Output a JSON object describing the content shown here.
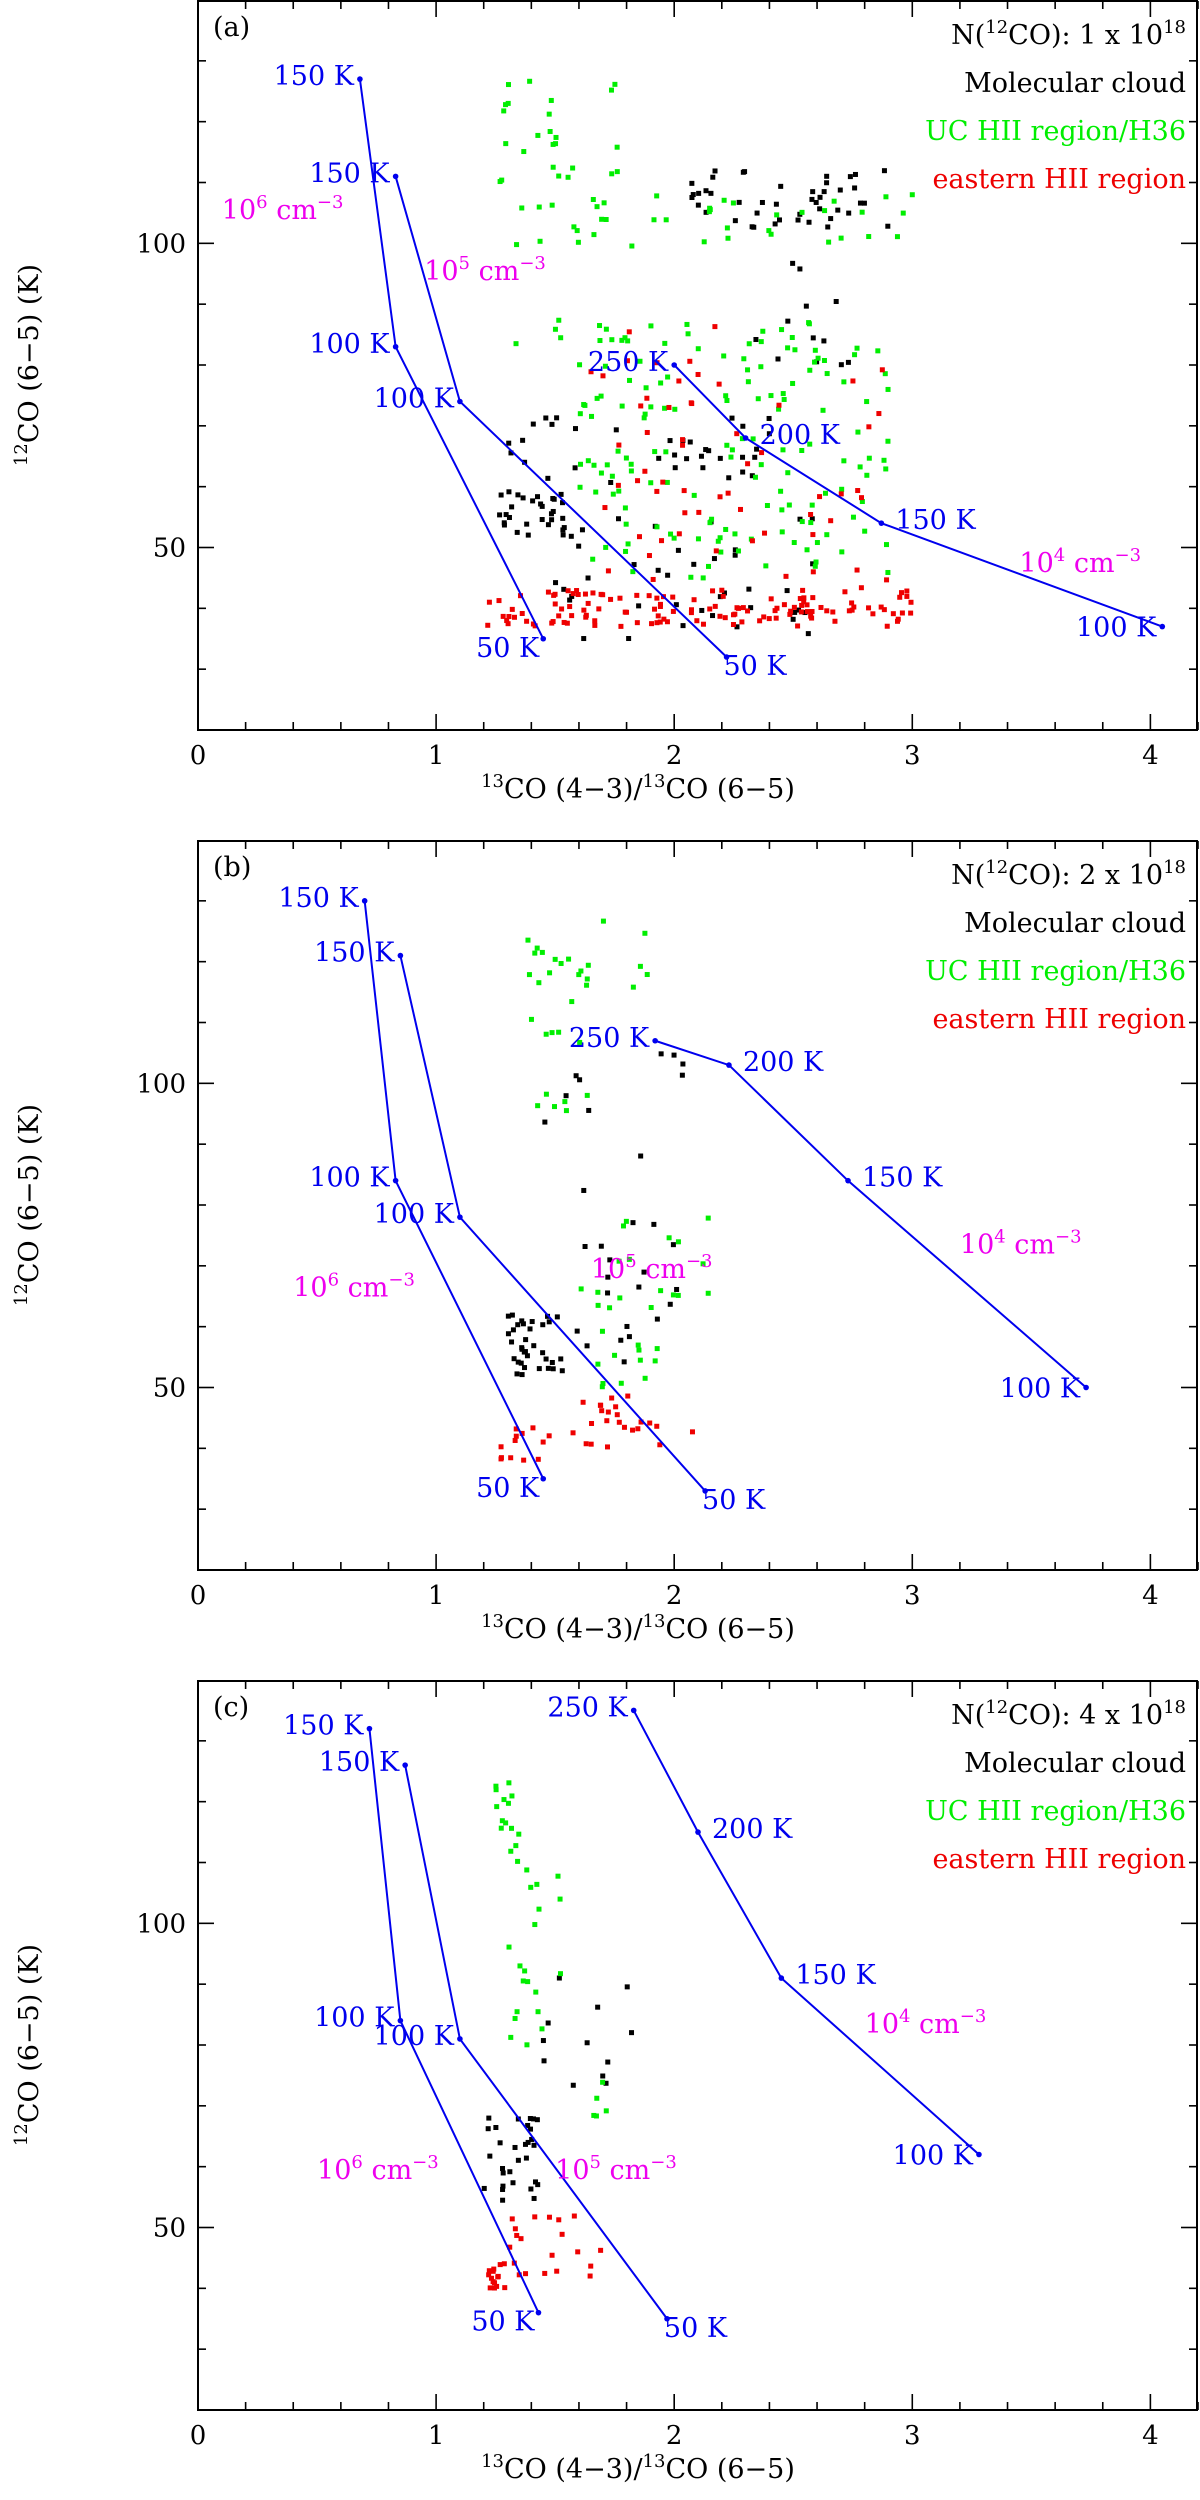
{
  "chart_data": [
    {
      "type": "scatter",
      "panel_label": "(a)",
      "column_density": {
        "prefix": "N(",
        "iso": "12",
        "mol": "CO): 1 x 10",
        "exp": "18"
      },
      "xlabel": {
        "iso1": "13",
        "mid": "CO (4−3)/",
        "iso2": "13",
        "end": "CO (6−5)"
      },
      "ylabel": {
        "iso": "12",
        "rest": "CO (6−5) (K)"
      },
      "xlim": [
        0,
        4.2
      ],
      "ylim": [
        20,
        140
      ],
      "xticks": [
        0,
        1,
        2,
        3,
        4
      ],
      "yticks": [
        50,
        100
      ],
      "legend": [
        {
          "label": "Molecular cloud",
          "color": "#000000"
        },
        {
          "label": "UC HII region/H36",
          "color": "#00ee00"
        },
        {
          "label": "eastern HII region",
          "color": "#ee0000"
        }
      ],
      "models": [
        {
          "density": "10^6 cm^-3",
          "x": [
            0.68,
            0.83,
            1.45
          ],
          "y": [
            127,
            83,
            35
          ],
          "t_labels": [
            "150 K",
            "100 K",
            "50 K"
          ]
        },
        {
          "density": "10^5 cm^-3",
          "x": [
            0.83,
            1.1,
            2.22
          ],
          "y": [
            111,
            74,
            32
          ],
          "t_labels": [
            "150 K",
            "100 K",
            "50 K"
          ]
        },
        {
          "density": "10^4 cm^-3",
          "x": [
            2.0,
            2.3,
            2.87,
            4.05
          ],
          "y": [
            80,
            68,
            54,
            37
          ],
          "t_labels": [
            "250 K",
            "200 K",
            "150 K",
            "100 K"
          ]
        }
      ],
      "annotations": [
        {
          "text_base": "10",
          "exp": "6",
          "unit": " cm",
          "uexp": "−3",
          "x": 0.1,
          "y": 104
        },
        {
          "text_base": "10",
          "exp": "5",
          "unit": " cm",
          "uexp": "−3",
          "x": 0.95,
          "y": 94
        },
        {
          "text_base": "10",
          "exp": "4",
          "unit": " cm",
          "uexp": "−3",
          "x": 3.45,
          "y": 46
        }
      ],
      "series_regions": [
        {
          "name": "Molecular cloud",
          "color": "#000000",
          "clusters": [
            {
              "x": [
                2.05,
                2.9
              ],
              "y": [
                102,
                112
              ],
              "n": 45
            },
            {
              "x": [
                2.3,
                2.85
              ],
              "y": [
                80,
                97
              ],
              "n": 12
            },
            {
              "x": [
                1.3,
                2.4
              ],
              "y": [
                60,
                72
              ],
              "n": 35
            },
            {
              "x": [
                1.25,
                1.55
              ],
              "y": [
                52,
                60
              ],
              "n": 30
            },
            {
              "x": [
                1.5,
                2.6
              ],
              "y": [
                35,
                55
              ],
              "n": 40
            }
          ]
        },
        {
          "name": "UC HII region/H36",
          "color": "#00ee00",
          "clusters": [
            {
              "x": [
                1.25,
                1.8
              ],
              "y": [
                110,
                127
              ],
              "n": 25
            },
            {
              "x": [
                1.3,
                3.0
              ],
              "y": [
                98,
                108
              ],
              "n": 40
            },
            {
              "x": [
                1.6,
                2.9
              ],
              "y": [
                45,
                87
              ],
              "n": 150
            },
            {
              "x": [
                1.3,
                1.75
              ],
              "y": [
                83,
                88
              ],
              "n": 5
            }
          ]
        },
        {
          "name": "eastern HII region",
          "color": "#ee0000",
          "clusters": [
            {
              "x": [
                1.2,
                3.0
              ],
              "y": [
                37,
                43
              ],
              "n": 130
            },
            {
              "x": [
                1.65,
                2.9
              ],
              "y": [
                43,
                88
              ],
              "n": 60
            }
          ]
        }
      ]
    },
    {
      "type": "scatter",
      "panel_label": "(b)",
      "column_density": {
        "prefix": "N(",
        "iso": "12",
        "mol": "CO): 2 x 10",
        "exp": "18"
      },
      "xlabel": {
        "iso1": "13",
        "mid": "CO (4−3)/",
        "iso2": "13",
        "end": "CO (6−5)"
      },
      "ylabel": {
        "iso": "12",
        "rest": "CO (6−5) (K)"
      },
      "xlim": [
        0,
        4.2
      ],
      "ylim": [
        20,
        140
      ],
      "xticks": [
        0,
        1,
        2,
        3,
        4
      ],
      "yticks": [
        50,
        100
      ],
      "legend": [
        {
          "label": "Molecular cloud",
          "color": "#000000"
        },
        {
          "label": "UC HII region/H36",
          "color": "#00ee00"
        },
        {
          "label": "eastern HII region",
          "color": "#ee0000"
        }
      ],
      "models": [
        {
          "density": "10^6 cm^-3",
          "x": [
            0.7,
            0.83,
            1.45
          ],
          "y": [
            130,
            84,
            35
          ],
          "t_labels": [
            "150 K",
            "100 K",
            "50 K"
          ]
        },
        {
          "density": "10^5 cm^-3",
          "x": [
            0.85,
            1.1,
            2.13
          ],
          "y": [
            121,
            78,
            33
          ],
          "t_labels": [
            "150 K",
            "100 K",
            "50 K"
          ]
        },
        {
          "density": "10^4 cm^-3",
          "x": [
            1.92,
            2.23,
            2.73,
            3.73
          ],
          "y": [
            107,
            103,
            84,
            50
          ],
          "t_labels": [
            "250 K",
            "200 K",
            "150 K",
            "100 K"
          ]
        }
      ],
      "annotations": [
        {
          "text_base": "10",
          "exp": "6",
          "unit": " cm",
          "uexp": "−3",
          "x": 0.4,
          "y": 65
        },
        {
          "text_base": "10",
          "exp": "5",
          "unit": " cm",
          "uexp": "−3",
          "x": 1.65,
          "y": 68
        },
        {
          "text_base": "10",
          "exp": "4",
          "unit": " cm",
          "uexp": "−3",
          "x": 3.2,
          "y": 72
        }
      ],
      "series_regions": [
        {
          "name": "Molecular cloud",
          "color": "#000000",
          "clusters": [
            {
              "x": [
                1.3,
                1.55
              ],
              "y": [
                52,
                62
              ],
              "n": 35
            },
            {
              "x": [
                1.45,
                2.1
              ],
              "y": [
                52,
                105
              ],
              "n": 30
            }
          ]
        },
        {
          "name": "UC HII region/H36",
          "color": "#00ee00",
          "clusters": [
            {
              "x": [
                1.35,
                1.9
              ],
              "y": [
                115,
                128
              ],
              "n": 20
            },
            {
              "x": [
                1.4,
                1.65
              ],
              "y": [
                95,
                115
              ],
              "n": 12
            },
            {
              "x": [
                1.6,
                2.15
              ],
              "y": [
                50,
                80
              ],
              "n": 30
            }
          ]
        },
        {
          "name": "eastern HII region",
          "color": "#ee0000",
          "clusters": [
            {
              "x": [
                1.25,
                1.45
              ],
              "y": [
                38,
                44
              ],
              "n": 12
            },
            {
              "x": [
                1.45,
                2.1
              ],
              "y": [
                40,
                50
              ],
              "n": 25
            }
          ]
        }
      ]
    },
    {
      "type": "scatter",
      "panel_label": "(c)",
      "column_density": {
        "prefix": "N(",
        "iso": "12",
        "mol": "CO): 4 x 10",
        "exp": "18"
      },
      "xlabel": {
        "iso1": "13",
        "mid": "CO (4−3)/",
        "iso2": "13",
        "end": "CO (6−5)"
      },
      "ylabel": {
        "iso": "12",
        "rest": "CO (6−5) (K)"
      },
      "xlim": [
        0,
        4.2
      ],
      "ylim": [
        20,
        140
      ],
      "xticks": [
        0,
        1,
        2,
        3,
        4
      ],
      "yticks": [
        50,
        100
      ],
      "legend": [
        {
          "label": "Molecular cloud",
          "color": "#000000"
        },
        {
          "label": "UC HII region/H36",
          "color": "#00ee00"
        },
        {
          "label": "eastern HII region",
          "color": "#ee0000"
        }
      ],
      "models": [
        {
          "density": "10^6 cm^-3",
          "x": [
            0.72,
            0.85,
            1.43
          ],
          "y": [
            132,
            84,
            36
          ],
          "t_labels": [
            "150 K",
            "100 K",
            "50 K"
          ]
        },
        {
          "density": "10^5 cm^-3",
          "x": [
            0.87,
            1.1,
            1.97
          ],
          "y": [
            126,
            81,
            35
          ],
          "t_labels": [
            "150 K",
            "100 K",
            "50 K"
          ]
        },
        {
          "density": "10^4 cm^-3",
          "x": [
            1.83,
            2.1,
            2.45,
            3.28
          ],
          "y": [
            135,
            115,
            91,
            62
          ],
          "t_labels": [
            "250 K",
            "200 K",
            "150 K",
            "100 K"
          ]
        }
      ],
      "annotations": [
        {
          "text_base": "10",
          "exp": "6",
          "unit": " cm",
          "uexp": "−3",
          "x": 0.5,
          "y": 58
        },
        {
          "text_base": "10",
          "exp": "5",
          "unit": " cm",
          "uexp": "−3",
          "x": 1.5,
          "y": 58
        },
        {
          "text_base": "10",
          "exp": "4",
          "unit": " cm",
          "uexp": "−3",
          "x": 2.8,
          "y": 82
        }
      ],
      "series_regions": [
        {
          "name": "Molecular cloud",
          "color": "#000000",
          "clusters": [
            {
              "x": [
                1.2,
                1.45
              ],
              "y": [
                54,
                68
              ],
              "n": 30
            },
            {
              "x": [
                1.45,
                1.85
              ],
              "y": [
                70,
                92
              ],
              "n": 12
            }
          ]
        },
        {
          "name": "UC HII region/H36",
          "color": "#00ee00",
          "clusters": [
            {
              "x": [
                1.25,
                1.35
              ],
              "y": [
                110,
                125
              ],
              "n": 15
            },
            {
              "x": [
                1.3,
                1.55
              ],
              "y": [
                80,
                110
              ],
              "n": 20
            },
            {
              "x": [
                1.65,
                1.72
              ],
              "y": [
                68,
                74
              ],
              "n": 5
            }
          ]
        },
        {
          "name": "eastern HII region",
          "color": "#ee0000",
          "clusters": [
            {
              "x": [
                1.2,
                1.3
              ],
              "y": [
                39,
                45
              ],
              "n": 15
            },
            {
              "x": [
                1.3,
                1.7
              ],
              "y": [
                42,
                52
              ],
              "n": 20
            }
          ]
        }
      ]
    }
  ]
}
